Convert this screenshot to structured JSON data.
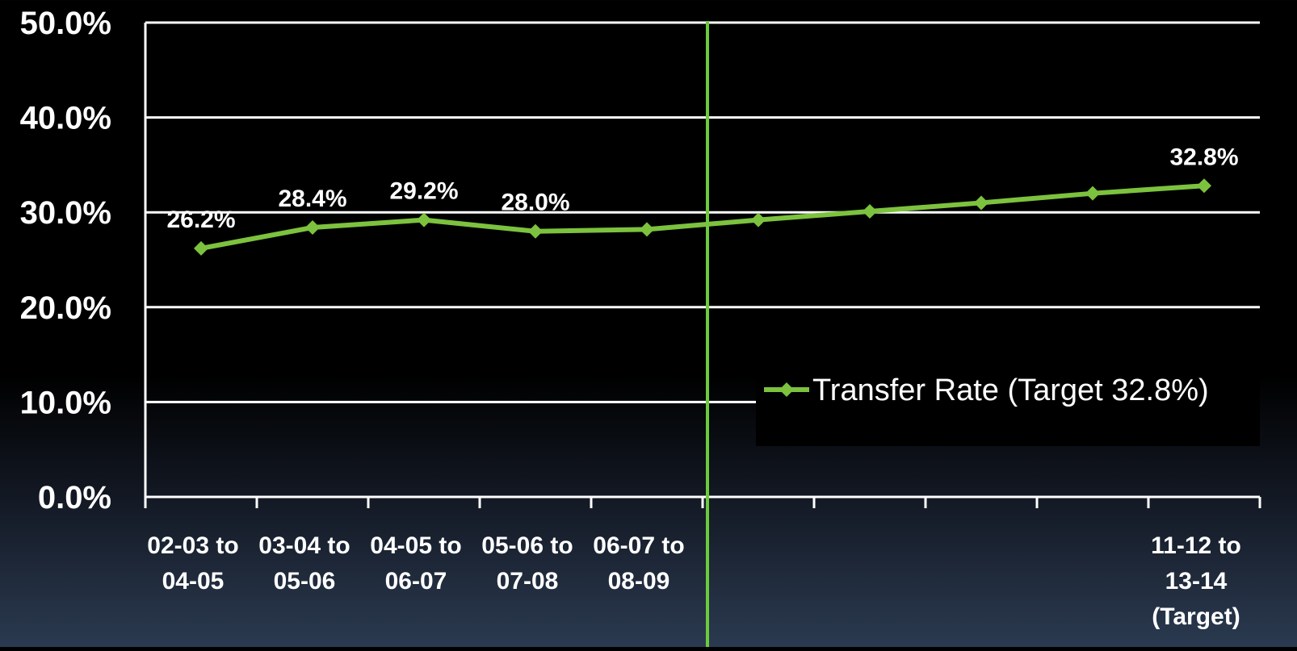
{
  "chart_data": {
    "type": "line",
    "categories": [
      [
        "02-03 to",
        "04-05"
      ],
      [
        "03-04 to",
        "05-06"
      ],
      [
        "04-05 to",
        "06-07"
      ],
      [
        "05-06 to",
        "07-08"
      ],
      [
        "06-07 to",
        "08-09"
      ],
      [
        "",
        ""
      ],
      [
        "",
        ""
      ],
      [
        "",
        ""
      ],
      [
        "",
        ""
      ],
      [
        "11-12 to",
        "13-14",
        "(Target)"
      ]
    ],
    "series": [
      {
        "name": "Transfer Rate (Target 32.8%)",
        "values": [
          26.2,
          28.4,
          29.2,
          28.0,
          28.2,
          29.2,
          30.1,
          31.0,
          32.0,
          32.8
        ],
        "labels": [
          "26.2%",
          "28.4%",
          "29.2%",
          "28.0%",
          "",
          "",
          "",
          "",
          "",
          "32.8%"
        ]
      }
    ],
    "ylim": [
      0,
      50
    ],
    "yticks": [
      "0.0%",
      "10.0%",
      "20.0%",
      "30.0%",
      "40.0%",
      "50.0%"
    ],
    "grid": true,
    "legend": "lower-right",
    "divider_after_index": 4,
    "colors": {
      "series": "#7dc23e",
      "divider": "#6ccb3c",
      "grid": "#ffffff",
      "text": "#ffffff"
    }
  }
}
